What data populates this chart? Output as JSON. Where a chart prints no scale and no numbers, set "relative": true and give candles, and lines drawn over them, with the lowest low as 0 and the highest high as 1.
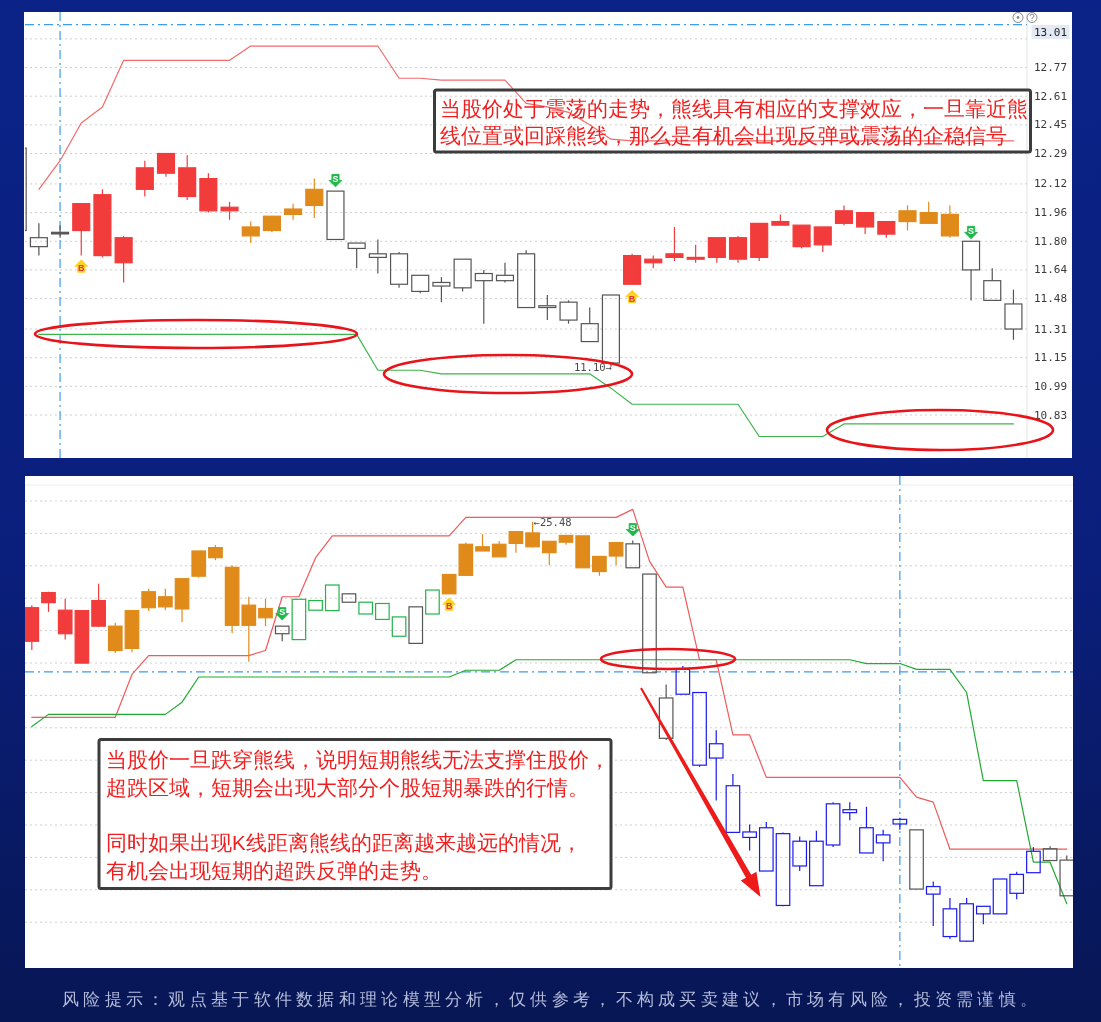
{
  "chart_data": [
    {
      "type": "candlestick",
      "categories": [
        null,
        null,
        null,
        null,
        null,
        null,
        null,
        null,
        null,
        null,
        null,
        null,
        null,
        null,
        null,
        null,
        null,
        null,
        null,
        null,
        null,
        null,
        null,
        null,
        null,
        null,
        null,
        null,
        null,
        null,
        null,
        null,
        null,
        null,
        null,
        null,
        null,
        null,
        null,
        null,
        null,
        null,
        null,
        null,
        null,
        null,
        null,
        null
      ],
      "ohlc": [
        [
          12.32,
          12.32,
          11.86,
          11.86
        ],
        [
          11.82,
          11.9,
          11.72,
          11.77
        ],
        [
          11.85,
          11.89,
          11.82,
          11.85
        ],
        [
          11.86,
          12.01,
          11.72,
          12.01
        ],
        [
          11.72,
          12.09,
          11.71,
          12.06
        ],
        [
          11.68,
          11.83,
          11.57,
          11.82
        ],
        [
          12.09,
          12.25,
          12.05,
          12.21
        ],
        [
          12.18,
          12.29,
          12.16,
          12.29
        ],
        [
          12.05,
          12.28,
          12.03,
          12.21
        ],
        [
          11.97,
          12.18,
          11.96,
          12.15
        ],
        [
          11.97,
          12.02,
          11.92,
          11.99
        ],
        [
          11.83,
          11.91,
          11.79,
          11.88
        ],
        [
          11.86,
          11.94,
          11.85,
          11.94
        ],
        [
          11.95,
          12.01,
          11.92,
          11.98
        ],
        [
          12.0,
          12.15,
          11.93,
          12.09
        ],
        [
          12.08,
          12.08,
          11.81,
          11.81
        ],
        [
          11.79,
          11.79,
          11.65,
          11.76
        ],
        [
          11.73,
          11.81,
          11.62,
          11.71
        ],
        [
          11.73,
          11.74,
          11.54,
          11.56
        ],
        [
          11.61,
          11.61,
          11.51,
          11.52
        ],
        [
          11.57,
          11.6,
          11.46,
          11.55
        ],
        [
          11.7,
          11.7,
          11.52,
          11.54
        ],
        [
          11.62,
          11.64,
          11.34,
          11.58
        ],
        [
          11.61,
          11.68,
          11.57,
          11.58
        ],
        [
          11.73,
          11.75,
          11.43,
          11.43
        ],
        [
          11.44,
          11.5,
          11.36,
          11.43
        ],
        [
          11.46,
          11.47,
          11.34,
          11.36
        ],
        [
          11.34,
          11.43,
          11.24,
          11.24
        ],
        [
          11.5,
          11.5,
          11.1,
          11.12
        ],
        [
          11.56,
          11.73,
          11.56,
          11.72
        ],
        [
          11.68,
          11.72,
          11.65,
          11.7
        ],
        [
          11.71,
          11.88,
          11.69,
          11.73
        ],
        [
          11.7,
          11.78,
          11.68,
          11.71
        ],
        [
          11.71,
          11.82,
          11.68,
          11.82
        ],
        [
          11.7,
          11.83,
          11.68,
          11.82
        ],
        [
          11.71,
          11.9,
          11.69,
          11.9
        ],
        [
          11.89,
          11.95,
          11.89,
          11.91
        ],
        [
          11.77,
          11.89,
          11.76,
          11.89
        ],
        [
          11.78,
          11.88,
          11.74,
          11.88
        ],
        [
          11.9,
          12.0,
          11.89,
          11.97
        ],
        [
          11.88,
          11.96,
          11.84,
          11.96
        ],
        [
          11.84,
          11.91,
          11.82,
          11.91
        ],
        [
          11.91,
          12.0,
          11.86,
          11.97
        ],
        [
          11.9,
          12.02,
          11.9,
          11.96
        ],
        [
          11.83,
          12.0,
          11.82,
          11.95
        ],
        [
          11.8,
          11.8,
          11.47,
          11.64
        ],
        [
          11.58,
          11.65,
          11.47,
          11.47
        ],
        [
          11.45,
          11.53,
          11.25,
          11.31
        ]
      ],
      "colors": [
        "#555555",
        "#555555",
        "#555555",
        "#f23b3b",
        "#f23b3b",
        "#f23b3b",
        "#f23b3b",
        "#f23b3b",
        "#f23b3b",
        "#f23b3b",
        "#f23b3b",
        "#e08a1a",
        "#e08a1a",
        "#e08a1a",
        "#e08a1a",
        "#555555",
        "#555555",
        "#555555",
        "#555555",
        "#555555",
        "#555555",
        "#555555",
        "#555555",
        "#555555",
        "#555555",
        "#555555",
        "#555555",
        "#555555",
        "#555555",
        "#f23b3b",
        "#f23b3b",
        "#f23b3b",
        "#f23b3b",
        "#f23b3b",
        "#f23b3b",
        "#f23b3b",
        "#f23b3b",
        "#f23b3b",
        "#f23b3b",
        "#f23b3b",
        "#f23b3b",
        "#f23b3b",
        "#e08a1a",
        "#e08a1a",
        "#e08a1a",
        "#555555",
        "#555555",
        "#555555"
      ],
      "series": [
        {
          "type": "line",
          "color": "#f26b6b",
          "values": [
            null,
            12.09,
            12.25,
            12.46,
            12.55,
            12.81,
            12.81,
            12.81,
            12.81,
            12.81,
            12.81,
            12.89,
            12.89,
            12.89,
            12.89,
            12.89,
            12.89,
            12.89,
            12.71,
            12.71,
            12.7,
            12.7,
            12.7,
            12.7,
            12.57,
            12.55,
            12.52,
            12.45,
            12.37,
            12.36,
            12.36,
            12.36,
            12.36,
            12.36,
            12.36,
            12.36,
            12.36,
            12.36,
            12.36,
            12.36,
            12.36,
            12.36,
            12.36,
            12.36,
            12.36,
            12.36,
            12.36,
            12.36
          ]
        },
        {
          "type": "line",
          "color": "#3cb54a",
          "values": [
            null,
            11.28,
            11.28,
            11.28,
            11.28,
            11.28,
            11.28,
            11.28,
            11.28,
            11.28,
            11.28,
            11.28,
            11.28,
            11.28,
            11.28,
            11.28,
            11.28,
            11.08,
            11.08,
            11.08,
            11.06,
            11.06,
            11.06,
            11.06,
            11.06,
            11.06,
            11.06,
            11.06,
            10.98,
            10.89,
            10.89,
            10.89,
            10.89,
            10.89,
            10.89,
            10.71,
            10.71,
            10.71,
            10.71,
            10.78,
            10.78,
            10.78,
            10.78,
            10.78,
            10.78,
            10.78,
            10.78,
            10.78
          ]
        },
        {
          "type": "scatter",
          "name": "B",
          "color": "#ffd21f",
          "marker": "triangle",
          "values": [
            null,
            null,
            null,
            11.66,
            null,
            null,
            null,
            null,
            null,
            null,
            null,
            null,
            null,
            null,
            null,
            null,
            null,
            null,
            null,
            null,
            null,
            null,
            null,
            null,
            null,
            null,
            null,
            null,
            null,
            11.49,
            null,
            null,
            null,
            null,
            null,
            null,
            null,
            null,
            null,
            null,
            null,
            null,
            null,
            null,
            null,
            null,
            null,
            null
          ]
        },
        {
          "type": "scatter",
          "name": "S",
          "color": "#1fb84a",
          "marker": "triangle",
          "values": [
            null,
            null,
            null,
            null,
            null,
            null,
            null,
            null,
            null,
            null,
            null,
            null,
            null,
            null,
            null,
            12.14,
            null,
            null,
            null,
            null,
            null,
            null,
            null,
            null,
            null,
            null,
            null,
            null,
            null,
            null,
            null,
            null,
            null,
            null,
            null,
            null,
            null,
            null,
            null,
            null,
            null,
            null,
            null,
            null,
            null,
            11.85,
            null,
            null
          ]
        }
      ],
      "ylim": [
        10.59,
        13.08
      ],
      "yticks": [
        10.83,
        10.99,
        11.15,
        11.31,
        11.48,
        11.64,
        {
          "value": 11.8,
          "label": "11.80"
        },
        11.96,
        12.12,
        12.29,
        12.45,
        12.61,
        12.77,
        {
          "value": 12.93,
          "label": null
        }
      ],
      "grid": "y",
      "tick_labels": "y",
      "ref_lines": [
        {
          "axis": "y",
          "value": 13.01,
          "label": "13.01",
          "color": "#3d9bf0",
          "line_style": "dashed"
        }
      ],
      "annotations": [
        "当股价处于震荡的走势，熊线具有相应的支撑效应，一旦靠近熊线位置或回踩熊线，那么是有机会出现反弹或震荡的企稳信号",
        "11.10→"
      ]
    },
    {
      "type": "candlestick",
      "relative": true,
      "categories": [
        null,
        null,
        null,
        null,
        null,
        null,
        null,
        null,
        null,
        null,
        null,
        null,
        null,
        null,
        null,
        null,
        null,
        null,
        null,
        null,
        null,
        null,
        null,
        null,
        null,
        null,
        null,
        null,
        null,
        null,
        null,
        null,
        null,
        null,
        null,
        null,
        null,
        null,
        null,
        null,
        null,
        null,
        null,
        null,
        null,
        null,
        null,
        null,
        null,
        null,
        null,
        null,
        null,
        null,
        null,
        null,
        null,
        null,
        null,
        null,
        null,
        null,
        null
      ],
      "ohlc": [
        [
          0.716,
          0.802,
          0.695,
          0.796
        ],
        [
          0.808,
          0.834,
          0.786,
          0.832
        ],
        [
          0.734,
          0.817,
          0.72,
          0.79
        ],
        [
          0.664,
          0.789,
          0.664,
          0.789
        ],
        [
          0.752,
          0.853,
          0.75,
          0.813
        ],
        [
          0.694,
          0.76,
          0.688,
          0.752
        ],
        [
          0.699,
          0.789,
          0.69,
          0.789
        ],
        [
          0.796,
          0.841,
          0.788,
          0.834
        ],
        [
          0.798,
          0.841,
          0.79,
          0.822
        ],
        [
          0.793,
          0.865,
          0.762,
          0.865
        ],
        [
          0.871,
          0.931,
          0.867,
          0.931
        ],
        [
          0.915,
          0.945,
          0.909,
          0.939
        ],
        [
          0.754,
          0.897,
          0.736,
          0.892
        ],
        [
          0.754,
          0.822,
          0.667,
          0.802
        ],
        [
          0.772,
          0.817,
          0.752,
          0.794
        ],
        [
          0.752,
          0.752,
          0.716,
          0.734
        ],
        [
          0.816,
          0.816,
          0.72,
          0.72
        ],
        [
          0.813,
          0.813,
          0.79,
          0.79
        ],
        [
          0.85,
          0.85,
          0.789,
          0.789
        ],
        [
          0.829,
          0.829,
          0.809,
          0.809
        ],
        [
          0.809,
          0.809,
          0.781,
          0.781
        ],
        [
          0.806,
          0.806,
          0.768,
          0.768
        ],
        [
          0.774,
          0.774,
          0.728,
          0.728
        ],
        [
          0.798,
          0.798,
          0.711,
          0.711
        ],
        [
          0.838,
          0.838,
          0.781,
          0.781
        ],
        [
          0.829,
          0.875,
          0.829,
          0.875
        ],
        [
          0.873,
          0.951,
          0.873,
          0.947
        ],
        [
          0.931,
          0.971,
          0.931,
          0.941
        ],
        [
          0.917,
          0.955,
          0.917,
          0.947
        ],
        [
          0.949,
          0.977,
          0.927,
          0.977
        ],
        [
          0.941,
          1,
          0.939,
          0.974
        ],
        [
          0.927,
          0.954,
          0.897,
          0.954
        ],
        [
          0.952,
          0.968,
          0.946,
          0.968
        ],
        [
          0.891,
          0.967,
          0.891,
          0.967
        ],
        [
          0.882,
          0.918,
          0.872,
          0.918
        ],
        [
          0.919,
          0.951,
          0.897,
          0.951
        ],
        [
          0.948,
          0.956,
          0.891,
          0.891
        ],
        [
          0.876,
          0.876,
          0.641,
          0.641
        ],
        [
          0.581,
          0.613,
          0.481,
          0.485
        ],
        [
          0.649,
          0.657,
          0.59,
          0.59
        ],
        [
          0.594,
          0.594,
          0.417,
          0.421
        ],
        [
          0.472,
          0.504,
          0.337,
          0.438
        ],
        [
          0.372,
          0.4,
          0.261,
          0.261
        ],
        [
          0.262,
          0.28,
          0.218,
          0.249
        ],
        [
          0.272,
          0.286,
          0.169,
          0.169
        ],
        [
          0.258,
          0.261,
          0.085,
          0.087
        ],
        [
          0.24,
          0.251,
          0.169,
          0.181
        ],
        [
          0.24,
          0.265,
          0.134,
          0.134
        ],
        [
          0.329,
          0.333,
          0.226,
          0.231
        ],
        [
          0.315,
          0.333,
          0.29,
          0.308
        ],
        [
          0.272,
          0.322,
          0.212,
          0.212
        ],
        [
          0.255,
          0.267,
          0.192,
          0.236
        ],
        [
          0.292,
          0.296,
          0.267,
          0.281
        ],
        [
          0.267,
          0.267,
          0.126,
          0.126
        ],
        [
          0.132,
          0.144,
          0.038,
          0.114
        ],
        [
          0.079,
          0.105,
          0.007,
          0.013
        ],
        [
          0.091,
          0.105,
          0,
          0.002
        ],
        [
          0.085,
          0.085,
          0.042,
          0.067
        ],
        [
          0.15,
          0.15,
          0.067,
          0.067
        ],
        [
          0.161,
          0.167,
          0.102,
          0.116
        ],
        [
          0.216,
          0.226,
          0.165,
          0.165
        ],
        [
          0.222,
          0.228,
          0.194,
          0.194
        ],
        [
          0.195,
          0.206,
          0.11,
          0.11
        ]
      ],
      "colors": [
        "#f23b3b",
        "#f23b3b",
        "#f23b3b",
        "#f23b3b",
        "#f23b3b",
        "#e08a1a",
        "#e08a1a",
        "#e08a1a",
        "#e08a1a",
        "#e08a1a",
        "#e08a1a",
        "#e08a1a",
        "#e08a1a",
        "#e08a1a",
        "#e08a1a",
        "#555555",
        "#22b34a",
        "#22b34a",
        "#22b34a",
        "#555555",
        "#22b34a",
        "#22b34a",
        "#22b34a",
        "#555555",
        "#22b34a",
        "#e08a1a",
        "#e08a1a",
        "#e08a1a",
        "#e08a1a",
        "#e08a1a",
        "#e08a1a",
        "#e08a1a",
        "#e08a1a",
        "#e08a1a",
        "#e08a1a",
        "#e08a1a",
        "#555555",
        "#555555",
        "#555555",
        "#1a1aee",
        "#1a1aee",
        "#1a1aee",
        "#1a1aee",
        "#1a1aee",
        "#1a1aee",
        "#1a1aee",
        "#1a1aee",
        "#1a1aee",
        "#1a1aee",
        "#1a1aee",
        "#1a1aee",
        "#1a1aee",
        "#1a1aee",
        "#555555",
        "#1a1aee",
        "#1a1aee",
        "#1a1aee",
        "#1a1aee",
        "#1a1aee",
        "#1a1aee",
        "#1a1aee",
        "#555555",
        "#555555"
      ],
      "series": [
        {
          "type": "line",
          "color": "#f05a5a",
          "values": [
            0.535,
            0.535,
            0.535,
            0.535,
            0.535,
            0.535,
            0.637,
            0.682,
            0.682,
            0.682,
            0.682,
            0.682,
            0.682,
            0.682,
            0.694,
            0.822,
            0.822,
            0.915,
            0.967,
            0.967,
            0.967,
            0.967,
            0.967,
            0.967,
            0.967,
            0.967,
            1.011,
            1.011,
            1.011,
            1.011,
            1.011,
            1.011,
            1.011,
            1.011,
            1.011,
            1.011,
            1.03,
            0.907,
            0.845,
            0.845,
            0.672,
            0.672,
            0.493,
            0.493,
            0.392,
            0.392,
            0.392,
            0.392,
            0.392,
            0.392,
            0.392,
            0.392,
            0.392,
            0.345,
            0.333,
            0.221,
            0.221,
            0.221,
            0.221,
            0.221,
            0.221,
            0.221,
            0.221
          ]
        },
        {
          "type": "line",
          "color": "#22aa33",
          "values": [
            0.513,
            0.542,
            0.542,
            0.542,
            0.542,
            0.542,
            0.542,
            0.542,
            0.542,
            0.571,
            0.631,
            0.631,
            0.631,
            0.631,
            0.631,
            0.631,
            0.631,
            0.631,
            0.631,
            0.631,
            0.631,
            0.631,
            0.631,
            0.631,
            0.631,
            0.631,
            0.647,
            0.647,
            0.647,
            0.672,
            0.672,
            0.672,
            0.672,
            0.672,
            0.672,
            0.672,
            0.672,
            0.672,
            0.672,
            0.672,
            0.672,
            0.672,
            0.672,
            0.672,
            0.672,
            0.672,
            0.672,
            0.672,
            0.672,
            0.672,
            0.663,
            0.663,
            0.663,
            0.649,
            0.649,
            0.649,
            0.594,
            0.384,
            0.384,
            0.384,
            0.19,
            0.19,
            0.091
          ]
        },
        {
          "type": "scatter",
          "name": "S",
          "color": "#1fb84a",
          "marker": "triangle",
          "values": [
            null,
            null,
            null,
            null,
            null,
            null,
            null,
            null,
            null,
            null,
            null,
            null,
            null,
            null,
            null,
            0.782,
            null,
            null,
            null,
            null,
            null,
            null,
            null,
            null,
            null,
            null,
            null,
            null,
            null,
            null,
            null,
            null,
            null,
            null,
            null,
            null,
            0.982,
            null,
            null,
            null,
            null,
            null,
            null,
            null,
            null,
            null,
            null,
            null,
            null,
            null,
            null,
            null,
            null,
            null,
            null,
            null,
            null,
            null,
            null,
            null,
            null,
            null,
            null
          ]
        },
        {
          "type": "scatter",
          "name": "B",
          "color": "#ffd21f",
          "marker": "triangle",
          "values": [
            null,
            null,
            null,
            null,
            null,
            null,
            null,
            null,
            null,
            null,
            null,
            null,
            null,
            null,
            null,
            null,
            null,
            null,
            null,
            null,
            null,
            null,
            null,
            null,
            null,
            0.804,
            null,
            null,
            null,
            null,
            null,
            null,
            null,
            null,
            null,
            null,
            null,
            null,
            null,
            null,
            null,
            null,
            null,
            null,
            null,
            null,
            null,
            null,
            null,
            null,
            null,
            null,
            null,
            null,
            null,
            null,
            null,
            null,
            null,
            null,
            null,
            null,
            null
          ]
        }
      ],
      "grid": "y",
      "ref_lines": [
        {
          "axis": "y",
          "value": 0.643,
          "color": "#3d9bf0",
          "line_style": "dashed"
        }
      ],
      "annotations": [
        "当股价一旦跌穿熊线，说明短期熊线无法支撑住股价，超跌区域，短期会出现大部分个股短期暴跌的行情。",
        "同时如果出现K线距离熊线的距离越来越远的情况，有机会出现短期的超跌反弹的走势。",
        "←25.48",
        "风险提示：观点基于软件数据和理论模型分析，仅供参考，不构成买卖建议，市场有风险，投资需谨慎。"
      ]
    }
  ]
}
